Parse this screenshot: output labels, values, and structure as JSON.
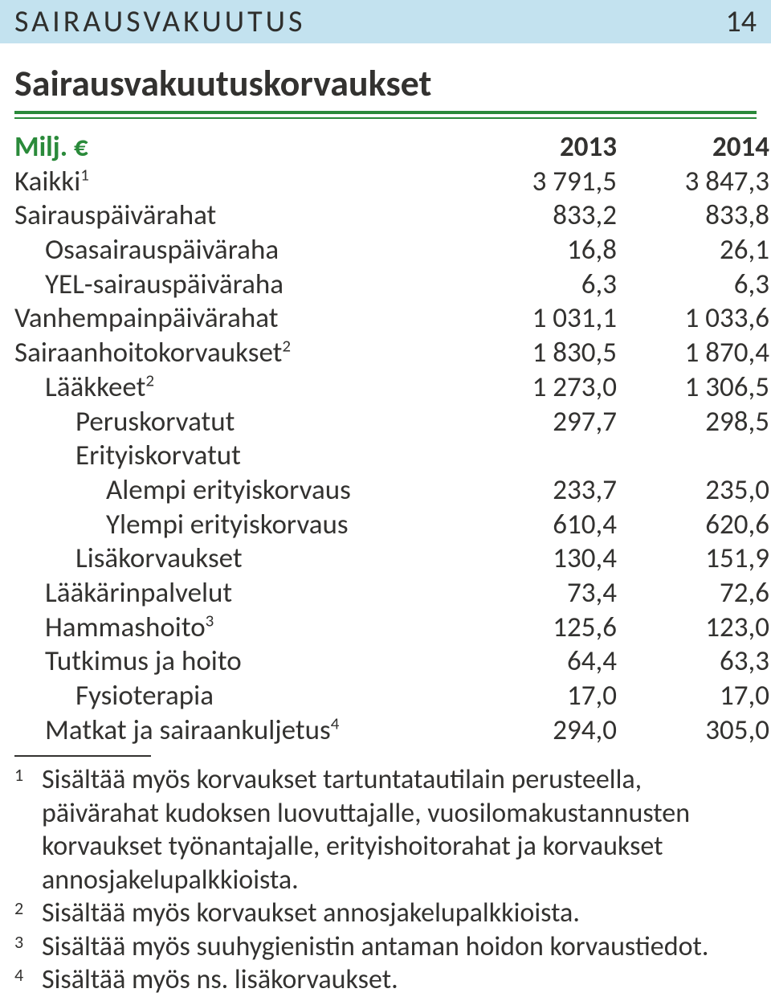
{
  "colors": {
    "banner_bg": "#c3e2ef",
    "banner_text": "#2f2f2d",
    "accent": "#2a8a3a",
    "text": "#333230",
    "rule": "#2a8a3a"
  },
  "header": {
    "section_title": "SAIRAUSVAKUUTUS",
    "page_number": "14"
  },
  "title": "Sairausvakuutuskorvaukset",
  "table": {
    "unit_label": "Milj. €",
    "year1": "2013",
    "year2": "2014",
    "rows": [
      {
        "indent": 0,
        "label": "Kaikki",
        "sup": "1",
        "v1": "3 791,5",
        "v2": "3 847,3"
      },
      {
        "indent": 0,
        "label": "Sairauspäivärahat",
        "sup": "",
        "v1": "833,2",
        "v2": "833,8"
      },
      {
        "indent": 1,
        "label": "Osasairauspäiväraha",
        "sup": "",
        "v1": "16,8",
        "v2": "26,1"
      },
      {
        "indent": 1,
        "label": "YEL-sairauspäiväraha",
        "sup": "",
        "v1": "6,3",
        "v2": "6,3"
      },
      {
        "indent": 0,
        "label": "Vanhempainpäivärahat",
        "sup": "",
        "v1": "1 031,1",
        "v2": "1 033,6"
      },
      {
        "indent": 0,
        "label": "Sairaanhoitokorvaukset",
        "sup": "2",
        "v1": "1 830,5",
        "v2": "1 870,4"
      },
      {
        "indent": 1,
        "label": "Lääkkeet",
        "sup": "2",
        "v1": "1 273,0",
        "v2": "1 306,5"
      },
      {
        "indent": 2,
        "label": "Peruskorvatut",
        "sup": "",
        "v1": "297,7",
        "v2": "298,5"
      },
      {
        "indent": 2,
        "label": "Erityiskorvatut",
        "sup": "",
        "v1": "",
        "v2": ""
      },
      {
        "indent": 3,
        "label": "Alempi erityiskorvaus",
        "sup": "",
        "v1": "233,7",
        "v2": "235,0"
      },
      {
        "indent": 3,
        "label": "Ylempi erityiskorvaus",
        "sup": "",
        "v1": "610,4",
        "v2": "620,6"
      },
      {
        "indent": 2,
        "label": "Lisäkorvaukset",
        "sup": "",
        "v1": "130,4",
        "v2": "151,9"
      },
      {
        "indent": 1,
        "label": "Lääkärinpalvelut",
        "sup": "",
        "v1": "73,4",
        "v2": "72,6"
      },
      {
        "indent": 1,
        "label": "Hammashoito",
        "sup": "3",
        "v1": "125,6",
        "v2": "123,0"
      },
      {
        "indent": 1,
        "label": "Tutkimus ja hoito",
        "sup": "",
        "v1": "64,4",
        "v2": "63,3"
      },
      {
        "indent": 2,
        "label": "Fysioterapia",
        "sup": "",
        "v1": "17,0",
        "v2": "17,0"
      },
      {
        "indent": 1,
        "label": "Matkat ja sairaankuljetus",
        "sup": "4",
        "v1": "294,0",
        "v2": "305,0"
      }
    ]
  },
  "footnotes": [
    {
      "marker": "1",
      "text": "Sisältää myös korvaukset tartuntatautilain perusteella, päivärahat kudoksen luovuttajalle, vuosilomakustannusten korvaukset työn­antajalle, erityishoitorahat ja korvaukset annosjakelupalkkioista."
    },
    {
      "marker": "2",
      "text": "Sisältää myös korvaukset annosjakelupalkkioista."
    },
    {
      "marker": "3",
      "text": "Sisältää myös suuhygienistin antaman hoidon korvaustiedot."
    },
    {
      "marker": "4",
      "text": "Sisältää myös ns. lisäkorvaukset."
    }
  ]
}
